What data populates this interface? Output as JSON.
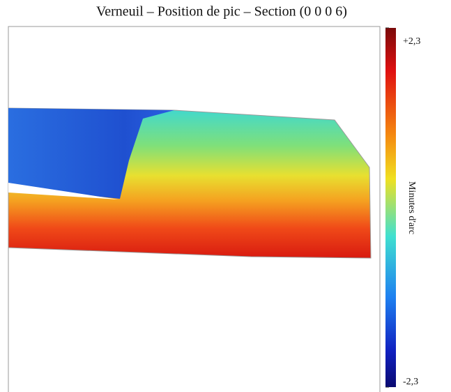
{
  "chart_data": {
    "type": "colormap",
    "title": "Verneuil – Position de pic – Section (0 0 0 6)",
    "colorbar_label": "Minutes d'arc",
    "clim": [
      -2.3,
      2.3
    ],
    "cticks": [
      {
        "value": 2.3,
        "label": "+2,3"
      },
      {
        "value": -2.3,
        "label": "-2,3"
      }
    ]
  }
}
